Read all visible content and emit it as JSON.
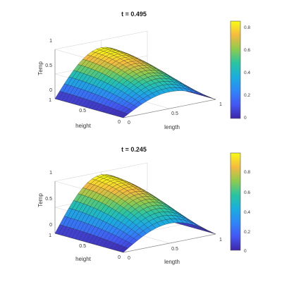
{
  "figure": {
    "panels": [
      {
        "title": "t = 0.495",
        "xlabel": "length",
        "ylabel": "height",
        "zlabel": "Temp",
        "colorbar_ticks": [
          "0.8",
          "0.6",
          "0.4",
          "0.2",
          "0"
        ]
      },
      {
        "title": "t = 0.245",
        "xlabel": "length",
        "ylabel": "height",
        "zlabel": "Temp",
        "colorbar_ticks": [
          "0.8",
          "0.6",
          "0.4",
          "0.2",
          "0"
        ]
      }
    ],
    "tick_labels": {
      "x": [
        "0",
        "0.5",
        "1"
      ],
      "y": [
        "0",
        "0.5",
        "1"
      ],
      "z": [
        "0",
        "0.5",
        "1"
      ]
    }
  },
  "chart_data": [
    {
      "type": "surface",
      "title": "t = 0.495",
      "xlabel": "length",
      "ylabel": "height",
      "zlabel": "Temp",
      "xlim": [
        0,
        1
      ],
      "ylim": [
        0,
        1
      ],
      "zlim": [
        0,
        1
      ],
      "grid": true,
      "colormap": "parula",
      "colorbar": {
        "range": [
          0,
          0.85
        ],
        "ticks": [
          0,
          0.2,
          0.4,
          0.6,
          0.8
        ]
      },
      "grid_points": 21,
      "surface_peak": 0.85,
      "surface_model": "peak * sin(pi * length) * (1 - 0.6 * (1 - height)^2)"
    },
    {
      "type": "surface",
      "title": "t = 0.245",
      "xlabel": "length",
      "ylabel": "height",
      "zlabel": "Temp",
      "xlim": [
        0,
        1
      ],
      "ylim": [
        0,
        1
      ],
      "zlim": [
        0,
        1
      ],
      "grid": true,
      "colormap": "parula",
      "colorbar": {
        "range": [
          0,
          0.95
        ],
        "ticks": [
          0,
          0.2,
          0.4,
          0.6,
          0.8
        ]
      },
      "grid_points": 21,
      "surface_peak": 0.95,
      "surface_model": "peak * sin(pi * length) * (1 - 0.6 * (1 - height)^2)"
    }
  ]
}
